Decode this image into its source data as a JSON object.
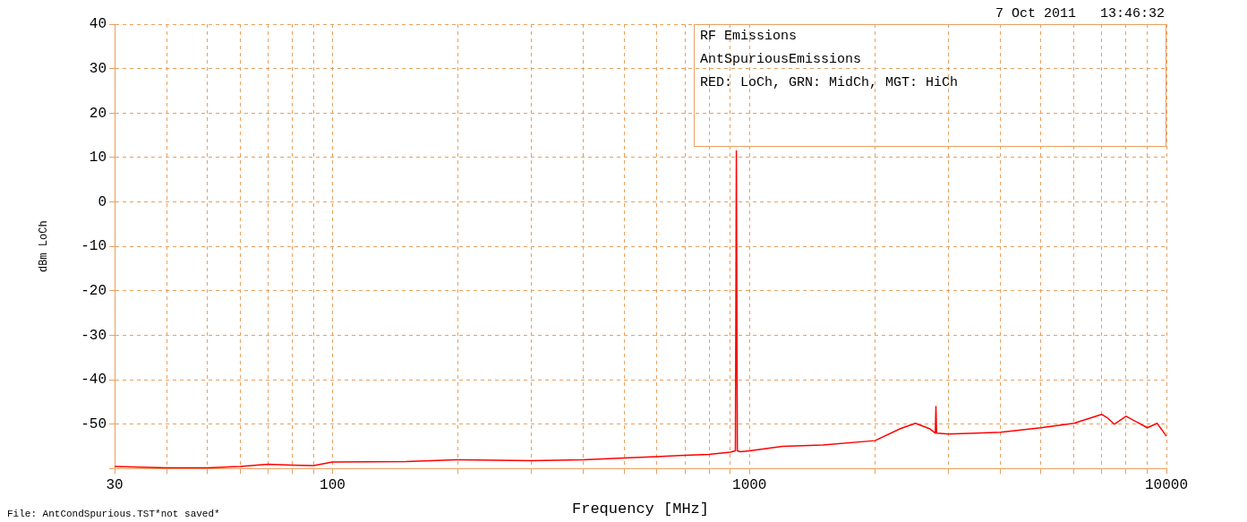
{
  "chart_data": {
    "type": "line",
    "xlabel": "Frequency [MHz]",
    "ylabel": "dBm LoCh",
    "annotations": [
      "7 Oct 2011   13:46:32",
      "RF Emissions",
      "AntSpuriousEmissions",
      "RED: LoCh, GRN: MidCh, MGT: HiCh",
      "File: AntCondSpurious.TST*not saved*"
    ],
    "series": [
      {
        "color": "#ff0000",
        "x": [
          30,
          40,
          50,
          60,
          70,
          80,
          90,
          100,
          150,
          200,
          300,
          400,
          500,
          600,
          700,
          800,
          900,
          925,
          930,
          935,
          950,
          1000,
          1200,
          1500,
          2000,
          2300,
          2500,
          2700,
          2790,
          2800,
          2810,
          3000,
          3500,
          4000,
          5000,
          6000,
          7000,
          7200,
          7500,
          8000,
          9000,
          9500,
          10000
        ],
        "values": [
          -59.5,
          -59.8,
          -59.8,
          -59.5,
          -59,
          -59.2,
          -59.3,
          -58.5,
          -58.4,
          -58,
          -58.2,
          -58,
          -57.6,
          -57.3,
          -57,
          -56.8,
          -56.3,
          -56,
          11.5,
          -56,
          -56.2,
          -56,
          -55,
          -54.7,
          -53.7,
          -51,
          -49.8,
          -51,
          -52,
          -46,
          -52,
          -52.2,
          -52,
          -51.8,
          -50.8,
          -49.8,
          -47.8,
          -48.5,
          -50,
          -48.2,
          -50.8,
          -49.8,
          -52.7
        ]
      }
    ],
    "log": "x",
    "xlim": [
      30,
      10000
    ],
    "xticks": [
      30,
      {
        "value": 40,
        "label": null
      },
      {
        "value": 50,
        "label": null
      },
      {
        "value": 60,
        "label": null
      },
      {
        "value": 70,
        "label": null
      },
      {
        "value": 80,
        "label": null
      },
      {
        "value": 90,
        "label": null
      },
      100,
      {
        "value": 200,
        "label": null
      },
      {
        "value": 300,
        "label": null
      },
      {
        "value": 400,
        "label": null
      },
      {
        "value": 500,
        "label": null
      },
      {
        "value": 600,
        "label": null
      },
      {
        "value": 700,
        "label": null
      },
      {
        "value": 800,
        "label": null
      },
      {
        "value": 900,
        "label": null
      },
      1000,
      {
        "value": 2000,
        "label": null
      },
      {
        "value": 3000,
        "label": null
      },
      {
        "value": 4000,
        "label": null
      },
      {
        "value": 5000,
        "label": null
      },
      {
        "value": 6000,
        "label": null
      },
      {
        "value": 7000,
        "label": null
      },
      {
        "value": 8000,
        "label": null
      },
      {
        "value": 9000,
        "label": null
      },
      10000
    ],
    "ylim": [
      -60,
      40
    ],
    "yticks": [
      {
        "value": -60,
        "label": null
      },
      -50,
      -40,
      -30,
      -20,
      -10,
      0,
      10,
      20,
      30,
      40
    ],
    "grid": true,
    "legend": false,
    "marker": "none",
    "line_style": "solid"
  }
}
